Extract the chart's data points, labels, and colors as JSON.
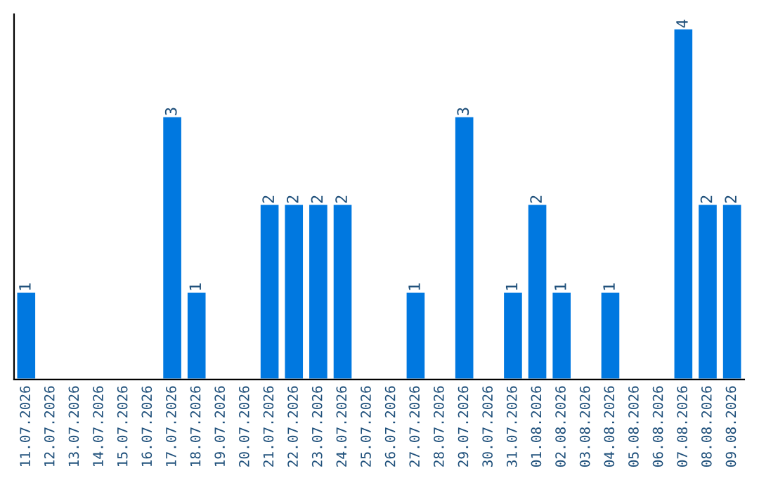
{
  "chart_data": {
    "type": "bar",
    "categories": [
      "11.07.2026",
      "12.07.2026",
      "13.07.2026",
      "14.07.2026",
      "15.07.2026",
      "16.07.2026",
      "17.07.2026",
      "18.07.2026",
      "19.07.2026",
      "20.07.2026",
      "21.07.2026",
      "22.07.2026",
      "23.07.2026",
      "24.07.2026",
      "25.07.2026",
      "26.07.2026",
      "27.07.2026",
      "28.07.2026",
      "29.07.2026",
      "30.07.2026",
      "31.07.2026",
      "01.08.2026",
      "02.08.2026",
      "03.08.2026",
      "04.08.2026",
      "05.08.2026",
      "06.08.2026",
      "07.08.2026",
      "08.08.2026",
      "09.08.2026"
    ],
    "values": [
      1,
      0,
      0,
      0,
      0,
      0,
      3,
      1,
      0,
      0,
      2,
      2,
      2,
      2,
      0,
      0,
      1,
      0,
      3,
      0,
      1,
      2,
      1,
      0,
      1,
      0,
      0,
      4,
      2,
      2
    ],
    "value_labels": [
      "1",
      null,
      null,
      null,
      null,
      null,
      "3",
      "1",
      null,
      null,
      "2",
      "2",
      "2",
      "2",
      null,
      null,
      "1",
      null,
      "3",
      null,
      "1",
      "2",
      "1",
      null,
      "1",
      null,
      null,
      "4",
      "2",
      "2"
    ],
    "color": "#0078e0",
    "ylim": [
      0,
      4.16
    ],
    "tick_labels": "x",
    "grid": false,
    "legend": false
  }
}
